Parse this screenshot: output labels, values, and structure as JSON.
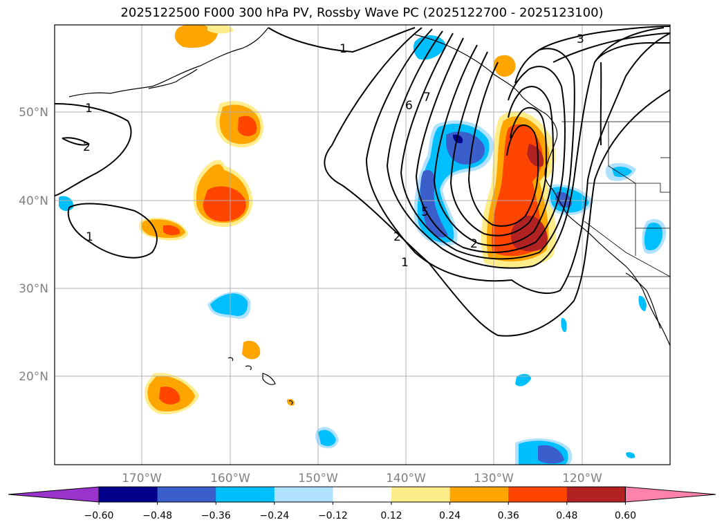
{
  "title": "2025122500 F000 300 hPa PV, Rossby Wave PC (2025122700 - 2025123100)",
  "lat_labels": [
    "50°N",
    "40°N",
    "30°N",
    "20°N"
  ],
  "lon_labels": [
    "170°W",
    "160°W",
    "150°W",
    "140°W",
    "130°W",
    "120°W"
  ],
  "colorbar": {
    "ticks": [
      "−0.60",
      "−0.48",
      "−0.36",
      "−0.24",
      "−0.12",
      "0.12",
      "0.24",
      "0.36",
      "0.48",
      "0.60"
    ],
    "colors": [
      "#9933cc",
      "#00008b",
      "#3a5fcd",
      "#00bfff",
      "#b0e2ff",
      "#ffffff",
      "#ffec8b",
      "#ffa500",
      "#ff4500",
      "#b22222",
      "#ff82ab"
    ]
  },
  "contour_labels": [
    "1",
    "1",
    "1",
    "2",
    "2",
    "3",
    "5",
    "6",
    "7",
    "1",
    "2"
  ],
  "colors": {
    "dark_red": "#b22222",
    "red_orange": "#ff4500",
    "orange": "#ffa500",
    "yellow": "#ffec8b",
    "light_blue": "#b0e2ff",
    "sky_blue": "#00bfff",
    "blue": "#3a5fcd",
    "navy": "#00008b"
  }
}
